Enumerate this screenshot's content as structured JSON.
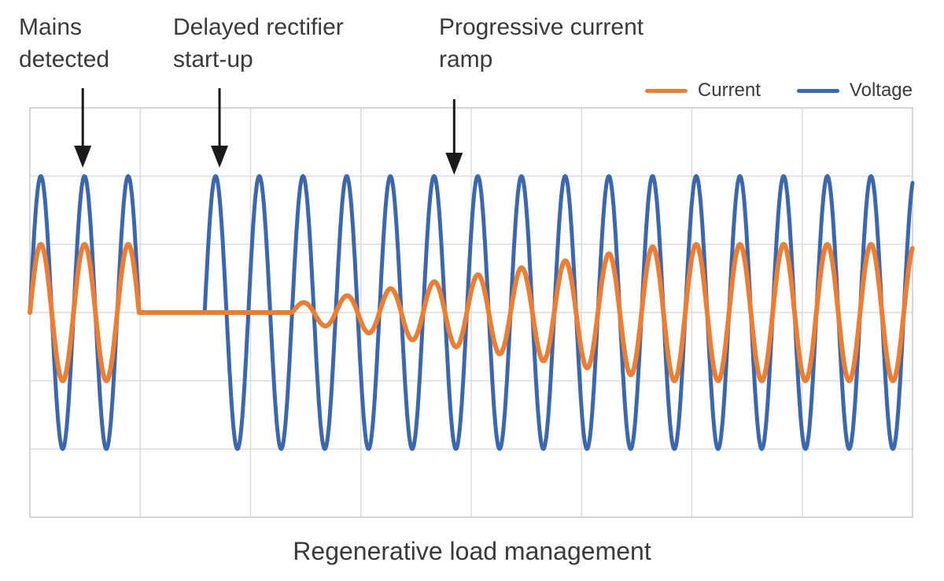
{
  "chart_data": {
    "type": "line",
    "title": "Regenerative load management",
    "x_axis": {
      "label": "",
      "min": 0,
      "max": 20.2,
      "units": "mains cycles",
      "grid_divisions": 8,
      "tick_labels": []
    },
    "y_axis": {
      "label": "",
      "min": -3,
      "max": 3,
      "units": "relative amplitude",
      "grid_divisions": 6,
      "tick_labels": []
    },
    "grid": "on",
    "legend_position": "top-right",
    "legend": [
      {
        "label": "Current",
        "color": "#ED7D31"
      },
      {
        "label": "Voltage",
        "color": "#3B67AF"
      }
    ],
    "series": [
      {
        "name": "Voltage",
        "color": "#3B67AF",
        "stroke_width": 5,
        "amplitude": 2.0,
        "waveform": "sine",
        "segments": [
          {
            "type": "sine",
            "from": 0.0,
            "to": 2.5
          },
          {
            "type": "gap",
            "from": 2.5,
            "to": 4.0
          },
          {
            "type": "sine",
            "from": 4.0,
            "to": 20.2
          }
        ]
      },
      {
        "name": "Current",
        "color": "#ED7D31",
        "stroke_width": 6,
        "amplitude": 1.0,
        "waveform": "sine",
        "segments": [
          {
            "type": "sine",
            "from": 0.0,
            "to": 2.5
          },
          {
            "type": "flat",
            "from": 2.5,
            "to": 6.0,
            "value": 0
          },
          {
            "type": "ramp",
            "from": 6.0,
            "to": 14.6,
            "start_factor": 0.12
          },
          {
            "type": "sine",
            "from": 14.6,
            "to": 20.2
          }
        ]
      }
    ],
    "annotations": [
      {
        "label": "Mains\ndetected",
        "x_cycles": 1.21
      },
      {
        "label": "Delayed rectifier\nstart-up",
        "x_cycles": 4.34
      },
      {
        "label": "Progressive current\nramp",
        "x_cycles": 9.71
      }
    ],
    "colors": {
      "grid": "#DBDBDB",
      "plot_border": "#CFCFCF",
      "text": "#3A3A3A",
      "arrow": "#1a1a1a",
      "background": "#FFFFFF"
    }
  }
}
